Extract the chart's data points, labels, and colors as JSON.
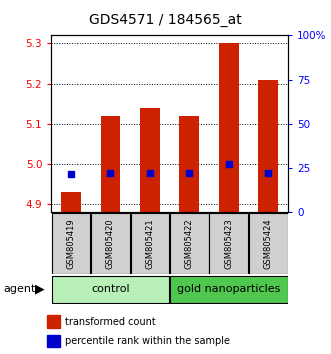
{
  "title": "GDS4571 / 184565_at",
  "samples": [
    "GSM805419",
    "GSM805420",
    "GSM805421",
    "GSM805422",
    "GSM805423",
    "GSM805424"
  ],
  "red_values": [
    4.93,
    5.12,
    5.14,
    5.12,
    5.3,
    5.21
  ],
  "blue_values": [
    4.975,
    4.977,
    4.977,
    4.977,
    5.0,
    4.977
  ],
  "ylim_left": [
    4.88,
    5.32
  ],
  "ylim_right": [
    0,
    100
  ],
  "yticks_left": [
    4.9,
    5.0,
    5.1,
    5.2,
    5.3
  ],
  "yticks_right": [
    0,
    25,
    50,
    75,
    100
  ],
  "ytick_labels_right": [
    "0",
    "25",
    "50",
    "75",
    "100%"
  ],
  "groups": [
    {
      "label": "control",
      "indices": [
        0,
        1,
        2
      ],
      "color": "#b8f0b8"
    },
    {
      "label": "gold nanoparticles",
      "indices": [
        3,
        4,
        5
      ],
      "color": "#50c850"
    }
  ],
  "agent_label": "agent",
  "legend_red": "transformed count",
  "legend_blue": "percentile rank within the sample",
  "bar_width": 0.5,
  "red_color": "#cc2200",
  "blue_color": "#0000cc",
  "title_fontsize": 10,
  "tick_fontsize": 7.5,
  "sample_fontsize": 6,
  "group_fontsize": 8,
  "legend_fontsize": 7
}
